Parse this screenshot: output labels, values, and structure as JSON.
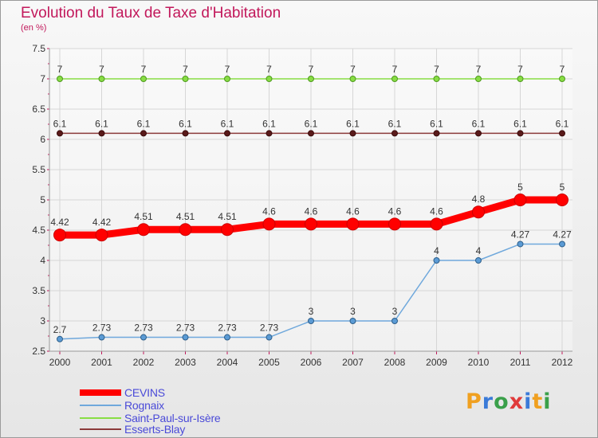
{
  "title": "Evolution du Taux de Taxe d'Habitation",
  "subtitle": "(en %)",
  "logo": {
    "letters": [
      "P",
      "r",
      "o",
      "x",
      "i",
      "t",
      "i"
    ],
    "colors": [
      "#f0a020",
      "#3a7ad8",
      "#3aa04a",
      "#e03a3a",
      "#3a7ad8",
      "#f0a020",
      "#3aa04a"
    ]
  },
  "chart_data": {
    "type": "line",
    "x": [
      2000,
      2001,
      2002,
      2003,
      2004,
      2005,
      2006,
      2007,
      2008,
      2009,
      2010,
      2011,
      2012
    ],
    "ylim": [
      2.5,
      7.5
    ],
    "yticks": [
      2.5,
      3,
      3.5,
      4,
      4.5,
      5,
      5.5,
      6,
      6.5,
      7,
      7.5
    ],
    "ytick_labels": [
      "2.5",
      "3",
      "3.5",
      "4",
      "4.5",
      "5",
      "5.5",
      "6",
      "6.5",
      "7",
      "7.5"
    ],
    "grid": true,
    "legend_position": "bottom-left",
    "series": [
      {
        "name": "CEVINS",
        "color": "#ff0000",
        "values": [
          4.42,
          4.42,
          4.51,
          4.51,
          4.51,
          4.6,
          4.6,
          4.6,
          4.6,
          4.6,
          4.8,
          5,
          5
        ],
        "labels": [
          "4.42",
          "4.42",
          "4.51",
          "4.51",
          "4.51",
          "4.6",
          "4.6",
          "4.6",
          "4.6",
          "4.6",
          "4.8",
          "5",
          "5"
        ]
      },
      {
        "name": "Rognaix",
        "color": "#6fa8dc",
        "values": [
          2.7,
          2.73,
          2.73,
          2.73,
          2.73,
          2.73,
          3,
          3,
          3,
          4,
          4,
          4.27,
          4.27
        ],
        "labels": [
          "2.7",
          "2.73",
          "2.73",
          "2.73",
          "2.73",
          "2.73",
          "3",
          "3",
          "3",
          "4",
          "4",
          "4.27",
          "4.27"
        ]
      },
      {
        "name": "Saint-Paul-sur-Isère",
        "color": "#88dd44",
        "values": [
          7,
          7,
          7,
          7,
          7,
          7,
          7,
          7,
          7,
          7,
          7,
          7,
          7
        ],
        "labels": [
          "7",
          "7",
          "7",
          "7",
          "7",
          "7",
          "7",
          "7",
          "7",
          "7",
          "7",
          "7",
          "7"
        ]
      },
      {
        "name": "Esserts-Blay",
        "color": "#8b3a3a",
        "values": [
          6.1,
          6.1,
          6.1,
          6.1,
          6.1,
          6.1,
          6.1,
          6.1,
          6.1,
          6.1,
          6.1,
          6.1,
          6.1
        ],
        "labels": [
          "6.1",
          "6.1",
          "6.1",
          "6.1",
          "6.1",
          "6.1",
          "6.1",
          "6.1",
          "6.1",
          "6.1",
          "6.1",
          "6.1",
          "6.1"
        ]
      }
    ]
  }
}
